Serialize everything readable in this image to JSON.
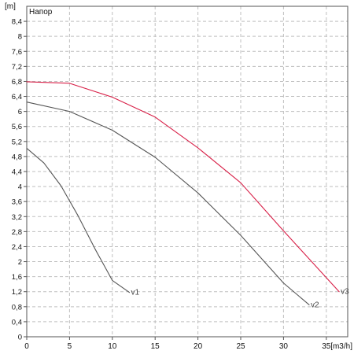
{
  "chart_data": {
    "type": "line",
    "title": "",
    "legend_title": "Напор",
    "xlabel": "[m3/h]",
    "ylabel": "[m]",
    "xlim": [
      0,
      37.5
    ],
    "ylim": [
      0,
      8.8
    ],
    "grid": true,
    "x_ticks": [
      0,
      5,
      10,
      15,
      20,
      25,
      30,
      35
    ],
    "y_ticks": [
      0,
      0.4,
      0.8,
      1.2,
      1.6,
      2,
      2.4,
      2.8,
      3.2,
      3.6,
      4,
      4.4,
      4.8,
      5.2,
      5.6,
      6,
      6.4,
      6.8,
      7.2,
      7.6,
      8,
      8.4
    ],
    "x_tick_labels": [
      "0",
      "5",
      "10",
      "15",
      "20",
      "25",
      "30",
      "35"
    ],
    "y_tick_labels": [
      "0",
      "0,4",
      "0,8",
      "1,2",
      "1,6",
      "2",
      "2,4",
      "2,8",
      "3,2",
      "3,6",
      "4",
      "4,4",
      "4,8",
      "5,2",
      "5,6",
      "6",
      "6,4",
      "6,8",
      "7,2",
      "7,6",
      "8",
      "8,4"
    ],
    "series": [
      {
        "name": "v1",
        "color": "#555555",
        "x": [
          0,
          2,
          4,
          6,
          8,
          10,
          12
        ],
        "y": [
          5.02,
          4.63,
          4.02,
          3.22,
          2.33,
          1.5,
          1.18
        ]
      },
      {
        "name": "v2",
        "color": "#555555",
        "x": [
          0,
          5,
          10,
          15,
          20,
          25,
          30,
          33
        ],
        "y": [
          6.25,
          6.0,
          5.5,
          4.78,
          3.83,
          2.7,
          1.43,
          0.85
        ]
      },
      {
        "name": "v3",
        "color": "#d81f47",
        "x": [
          0,
          5,
          10,
          15,
          20,
          25,
          30,
          36.5
        ],
        "y": [
          6.79,
          6.75,
          6.38,
          5.85,
          5.03,
          4.1,
          2.82,
          1.2
        ]
      }
    ]
  },
  "palette": {
    "background": "#ffffff",
    "axis": "#555555",
    "grid": "#bfbfbf",
    "text": "#111111"
  }
}
